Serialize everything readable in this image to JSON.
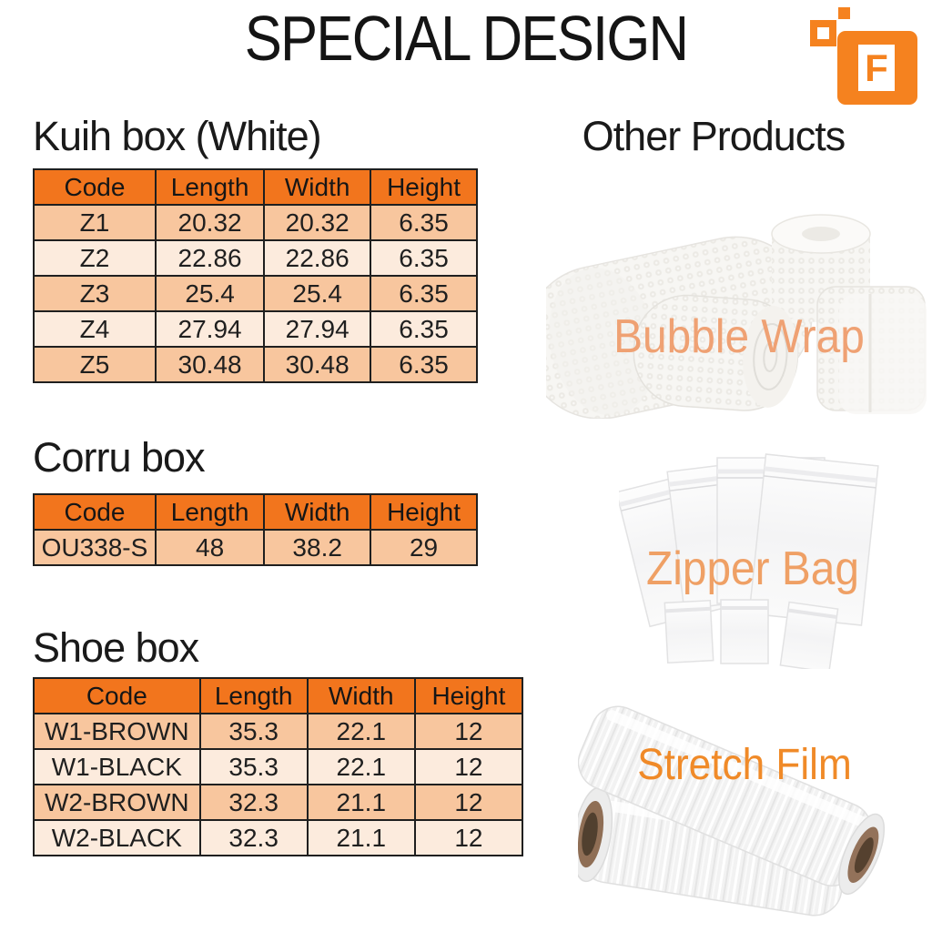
{
  "page": {
    "title": "SPECIAL DESIGN"
  },
  "logo": {
    "letter": "F",
    "color": "#f5821f"
  },
  "table_style": {
    "header_bg": "#f2751d",
    "row_dark": "#f8c69e",
    "row_light": "#fcebdd",
    "border": "#1f1f1f"
  },
  "left_sections": [
    {
      "heading": "Kuih box (White)",
      "table": {
        "headers": [
          "Code",
          "Length",
          "Width",
          "Height"
        ],
        "rows": [
          [
            "Z1",
            "20.32",
            "20.32",
            "6.35"
          ],
          [
            "Z2",
            "22.86",
            "22.86",
            "6.35"
          ],
          [
            "Z3",
            "25.4",
            "25.4",
            "6.35"
          ],
          [
            "Z4",
            "27.94",
            "27.94",
            "6.35"
          ],
          [
            "Z5",
            "30.48",
            "30.48",
            "6.35"
          ]
        ]
      }
    },
    {
      "heading": "Corru box",
      "table": {
        "headers": [
          "Code",
          "Length",
          "Width",
          "Height"
        ],
        "rows": [
          [
            "OU338-S",
            "48",
            "38.2",
            "29"
          ]
        ]
      }
    },
    {
      "heading": "Shoe box",
      "table": {
        "headers": [
          "Code",
          "Length",
          "Width",
          "Height"
        ],
        "rows": [
          [
            "W1-BROWN",
            "35.3",
            "22.1",
            "12"
          ],
          [
            "W1-BLACK",
            "35.3",
            "22.1",
            "12"
          ],
          [
            "W2-BROWN",
            "32.3",
            "21.1",
            "12"
          ],
          [
            "W2-BLACK",
            "32.3",
            "21.1",
            "12"
          ]
        ]
      }
    }
  ],
  "right_column": {
    "heading": "Other Products",
    "products": [
      {
        "label": "Bubble Wrap",
        "label_color": "#efa173"
      },
      {
        "label": "Zipper Bag",
        "label_color": "#efa065"
      },
      {
        "label": "Stretch Film",
        "label_color": "#f08a28"
      }
    ]
  }
}
